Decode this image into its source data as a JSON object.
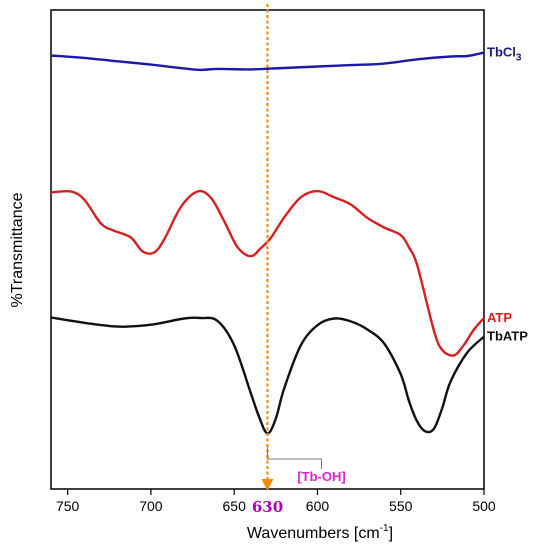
{
  "chart_data": {
    "type": "line",
    "xlabel": "Wavenumbers [cm",
    "xlabel_sup": "-1",
    "xlabel_end": "]",
    "ylabel": "%Transmittance",
    "xlim": [
      760,
      500
    ],
    "x_reversed": true,
    "y_ticks_shown": false,
    "x_ticks": [
      750,
      700,
      650,
      600,
      550,
      500
    ],
    "marker": {
      "x": 630,
      "label": "630",
      "color": "#f08c10",
      "label_color": "#b000b0"
    },
    "annotation": {
      "text": "[Tb-OH]",
      "x": 630,
      "color": "#e020d0",
      "leader_color": "#777777"
    },
    "series": [
      {
        "name": "TbCl3",
        "label_main": "TbCl",
        "label_sub": "3",
        "color": "#1a1aaa",
        "label_color": "#1a1a7a",
        "x": [
          760,
          740,
          720,
          700,
          680,
          670,
          660,
          640,
          620,
          600,
          580,
          560,
          540,
          520,
          510,
          500
        ],
        "y": [
          0.905,
          0.9,
          0.893,
          0.886,
          0.878,
          0.875,
          0.877,
          0.876,
          0.879,
          0.882,
          0.885,
          0.888,
          0.897,
          0.903,
          0.904,
          0.911
        ]
      },
      {
        "name": "ATP",
        "label_main": "ATP",
        "color": "#d62020",
        "label_color": "#d62020",
        "x": [
          760,
          748,
          740,
          730,
          722,
          712,
          705,
          698,
          692,
          682,
          672,
          664,
          656,
          648,
          640,
          634,
          628,
          620,
          610,
          600,
          590,
          580,
          570,
          560,
          550,
          545,
          540,
          530,
          525,
          518,
          512,
          506,
          500
        ],
        "y": [
          0.619,
          0.621,
          0.604,
          0.554,
          0.539,
          0.525,
          0.496,
          0.494,
          0.521,
          0.589,
          0.621,
          0.608,
          0.559,
          0.505,
          0.486,
          0.503,
          0.524,
          0.567,
          0.609,
          0.622,
          0.609,
          0.594,
          0.566,
          0.546,
          0.53,
          0.504,
          0.466,
          0.33,
          0.29,
          0.279,
          0.301,
          0.333,
          0.357
        ]
      },
      {
        "name": "TbATP",
        "label_main": "TbATP",
        "color": "#111111",
        "label_color": "#111111",
        "x": [
          760,
          740,
          720,
          700,
          680,
          670,
          660,
          650,
          640,
          635,
          630,
          625,
          620,
          610,
          600,
          590,
          580,
          570,
          560,
          550,
          545,
          540,
          535,
          530,
          525,
          520,
          510,
          500
        ],
        "y": [
          0.358,
          0.347,
          0.339,
          0.343,
          0.356,
          0.357,
          0.351,
          0.3,
          0.2,
          0.15,
          0.116,
          0.147,
          0.21,
          0.3,
          0.342,
          0.356,
          0.35,
          0.333,
          0.304,
          0.24,
          0.183,
          0.14,
          0.12,
          0.126,
          0.17,
          0.225,
          0.285,
          0.318
        ]
      }
    ]
  }
}
